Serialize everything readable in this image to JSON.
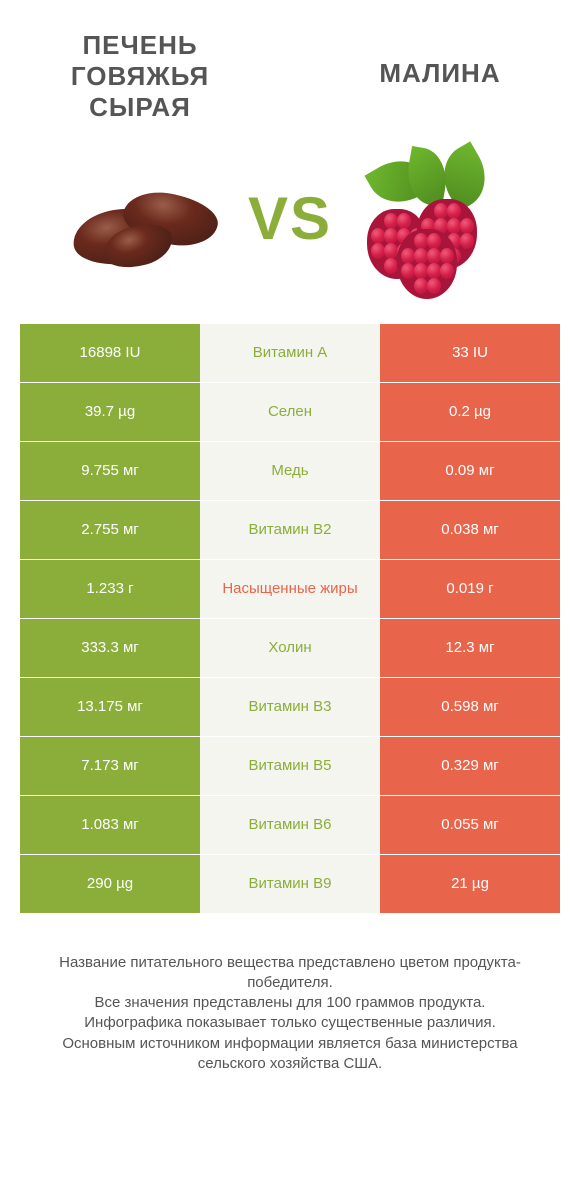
{
  "colors": {
    "left_bar": "#8bae3a",
    "right_bar": "#e8644a",
    "mid_bg": "#f5f5f0",
    "mid_text_winner_left": "#8bae3a",
    "mid_text_winner_right": "#e8644a",
    "title_text": "#555555",
    "vs_text": "#8bae3a",
    "liver_dark": "#4a1f17",
    "liver_mid": "#6b2a1d",
    "liver_shine": "#9a5d4a",
    "rasp_red": "#d61f4a",
    "rasp_dark": "#a8143a",
    "rasp_light": "#ef5b7a",
    "leaf_green": "#6fb82e",
    "leaf_dark": "#4e8a1f"
  },
  "titles": {
    "left": "ПЕЧЕНЬ ГОВЯЖЬЯ СЫРАЯ",
    "right": "МАЛИНА"
  },
  "vs": "VS",
  "rows": [
    {
      "name": "Витамин A",
      "left": "16898 IU",
      "right": "33 IU",
      "winner": "left"
    },
    {
      "name": "Селен",
      "left": "39.7 µg",
      "right": "0.2 µg",
      "winner": "left"
    },
    {
      "name": "Медь",
      "left": "9.755 мг",
      "right": "0.09 мг",
      "winner": "left"
    },
    {
      "name": "Витамин B2",
      "left": "2.755 мг",
      "right": "0.038 мг",
      "winner": "left"
    },
    {
      "name": "Насыщенные жиры",
      "left": "1.233 г",
      "right": "0.019 г",
      "winner": "right"
    },
    {
      "name": "Холин",
      "left": "333.3 мг",
      "right": "12.3 мг",
      "winner": "left"
    },
    {
      "name": "Витамин B3",
      "left": "13.175 мг",
      "right": "0.598 мг",
      "winner": "left"
    },
    {
      "name": "Витамин B5",
      "left": "7.173 мг",
      "right": "0.329 мг",
      "winner": "left"
    },
    {
      "name": "Витамин B6",
      "left": "1.083 мг",
      "right": "0.055 мг",
      "winner": "left"
    },
    {
      "name": "Витамин B9",
      "left": "290 µg",
      "right": "21 µg",
      "winner": "left"
    }
  ],
  "footer": [
    "Название питательного вещества представлено цветом продукта-победителя.",
    "Все значения представлены для 100 граммов продукта.",
    "Инфографика показывает только существенные различия.",
    "Основным источником информации является база министерства сельского хозяйства США."
  ]
}
